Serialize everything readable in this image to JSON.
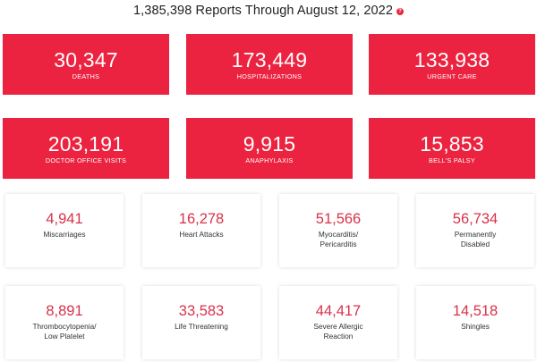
{
  "header": {
    "title": "1,385,398 Reports Through August 12, 2022",
    "help_glyph": "?"
  },
  "red_cards": [
    {
      "value": "30,347",
      "label": "DEATHS"
    },
    {
      "value": "173,449",
      "label": "HOSPITALIZATIONS"
    },
    {
      "value": "133,938",
      "label": "URGENT CARE"
    },
    {
      "value": "203,191",
      "label": "DOCTOR OFFICE VISITS"
    },
    {
      "value": "9,915",
      "label": "ANAPHYLAXIS"
    },
    {
      "value": "15,853",
      "label": "BELL'S PALSY"
    }
  ],
  "white_cards": [
    {
      "value": "4,941",
      "label": "Miscarriages"
    },
    {
      "value": "16,278",
      "label": "Heart Attacks"
    },
    {
      "value": "51,566",
      "label": "Myocarditis/\nPericarditis"
    },
    {
      "value": "56,734",
      "label": "Permanently\nDisabled"
    },
    {
      "value": "8,891",
      "label": "Thrombocytopenia/\nLow Platelet"
    },
    {
      "value": "33,583",
      "label": "Life Threatening"
    },
    {
      "value": "44,417",
      "label": "Severe Allergic\nReaction"
    },
    {
      "value": "14,518",
      "label": "Shingles"
    }
  ],
  "colors": {
    "red_card_bg": "#ec2340",
    "stat_number": "#d8324a"
  }
}
